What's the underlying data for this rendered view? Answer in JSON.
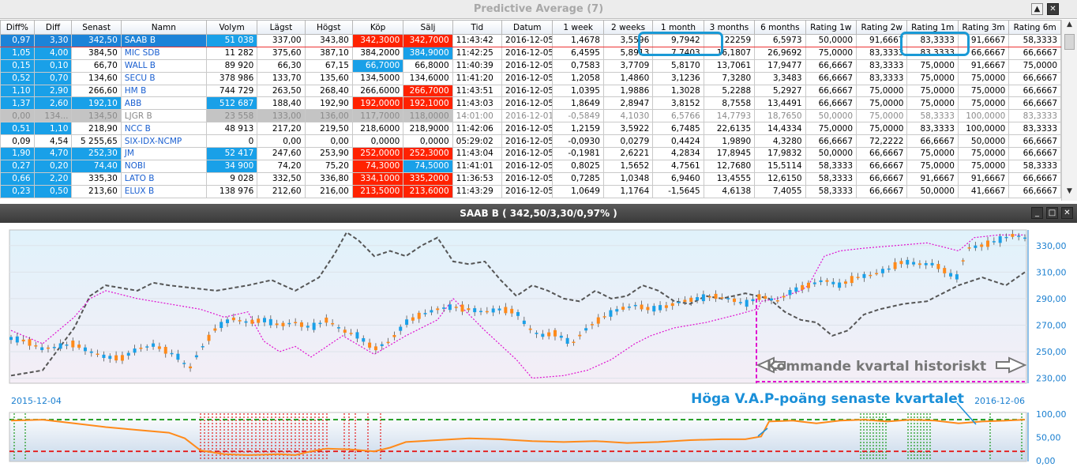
{
  "window": {
    "title": "Predictive Average (7)",
    "buttons": [
      "▲",
      "✕"
    ]
  },
  "grid": {
    "columns": [
      "Diff%",
      "Diff",
      "Senast",
      "Namn",
      "Volym",
      "Lägst",
      "Högst",
      "Köp",
      "Sälj",
      "Tid",
      "Datum",
      "1 week",
      "2 weeks",
      "1 month",
      "3 months",
      "6 months",
      "Rating 1w",
      "Rating 2w",
      "Rating 1m",
      "Rating 3m",
      "Rating 6m"
    ],
    "rows": [
      [
        "0,97",
        "3,30",
        "342,50",
        "SAAB B",
        "51 038",
        "337,00",
        "343,80",
        "342,3000",
        "342,7000",
        "11:43:42",
        "2016-12-05",
        "1,4678",
        "3,5596",
        "9,7942",
        "22259",
        "6,5973",
        "50,0000",
        "91,6667",
        "83,3333",
        "91,6667",
        "58,3333"
      ],
      [
        "1,05",
        "4,00",
        "384,50",
        "MIC SDB",
        "11 282",
        "375,60",
        "387,10",
        "384,2000",
        "384,9000",
        "11:42:25",
        "2016-12-05",
        "6,4595",
        "5,8913",
        "7,7403",
        "16,1807",
        "26,9692",
        "75,0000",
        "83,3333",
        "83,3333",
        "66,6667",
        "66,6667"
      ],
      [
        "0,15",
        "0,10",
        "66,70",
        "WALL B",
        "89 920",
        "66,30",
        "67,15",
        "66,7000",
        "66,8000",
        "11:40:39",
        "2016-12-05",
        "0,7583",
        "3,7709",
        "5,8170",
        "13,7061",
        "17,9477",
        "66,6667",
        "83,3333",
        "75,0000",
        "91,6667",
        "75,0000"
      ],
      [
        "0,52",
        "0,70",
        "134,60",
        "SECU B",
        "378 986",
        "133,70",
        "135,60",
        "134,5000",
        "134,6000",
        "11:41:20",
        "2016-12-05",
        "1,2058",
        "1,4860",
        "3,1236",
        "7,3280",
        "3,3483",
        "66,6667",
        "83,3333",
        "75,0000",
        "75,0000",
        "66,6667"
      ],
      [
        "1,10",
        "2,90",
        "266,60",
        "HM B",
        "744 729",
        "263,50",
        "268,40",
        "266,6000",
        "266,7000",
        "11:43:51",
        "2016-12-05",
        "1,0395",
        "1,9886",
        "1,3028",
        "5,2288",
        "5,2927",
        "66,6667",
        "75,0000",
        "75,0000",
        "75,0000",
        "66,6667"
      ],
      [
        "1,37",
        "2,60",
        "192,10",
        "ABB",
        "512 687",
        "188,40",
        "192,90",
        "192,0000",
        "192,1000",
        "11:43:03",
        "2016-12-05",
        "1,8649",
        "2,8947",
        "3,8152",
        "8,7558",
        "13,4491",
        "66,6667",
        "75,0000",
        "75,0000",
        "75,0000",
        "66,6667"
      ],
      [
        "0,00",
        "134...",
        "134,50",
        "LJGR B",
        "23 558",
        "133,00",
        "136,00",
        "117,7000",
        "118,0000",
        "14:01:00",
        "2016-12-01",
        "-0,5849",
        "4,1030",
        "6,5766",
        "14,7793",
        "18,7650",
        "50,0000",
        "75,0000",
        "58,3333",
        "100,0000",
        "83,3333"
      ],
      [
        "0,51",
        "1,10",
        "218,90",
        "NCC B",
        "48 913",
        "217,20",
        "219,50",
        "218,6000",
        "218,9000",
        "11:42:06",
        "2016-12-05",
        "1,2159",
        "3,5922",
        "6,7485",
        "22,6135",
        "14,4334",
        "75,0000",
        "75,0000",
        "83,3333",
        "100,0000",
        "83,3333"
      ],
      [
        "0,09",
        "4,54",
        "5 255,65",
        "SIX-IDX-NCMP",
        "0",
        "0,00",
        "0,00",
        "0,0000",
        "0,0000",
        "05:29:02",
        "2016-12-05",
        "-0,0930",
        "0,0279",
        "0,4424",
        "1,9890",
        "4,3280",
        "66,6667",
        "72,2222",
        "66,6667",
        "50,0000",
        "66,6667"
      ],
      [
        "1,90",
        "4,70",
        "252,30",
        "JM",
        "52 417",
        "247,60",
        "253,90",
        "252,0000",
        "252,3000",
        "11:43:04",
        "2016-12-05",
        "-0,1981",
        "2,6221",
        "4,2834",
        "17,8945",
        "17,9832",
        "50,0000",
        "66,6667",
        "75,0000",
        "75,0000",
        "66,6667"
      ],
      [
        "0,27",
        "0,20",
        "74,40",
        "NOBI",
        "34 900",
        "74,20",
        "75,20",
        "74,3000",
        "74,5000",
        "11:41:01",
        "2016-12-05",
        "0,8025",
        "1,5652",
        "4,7561",
        "12,7680",
        "15,5114",
        "58,3333",
        "66,6667",
        "75,0000",
        "75,0000",
        "58,3333"
      ],
      [
        "0,66",
        "2,20",
        "335,30",
        "LATO B",
        "9 028",
        "332,50",
        "336,80",
        "334,1000",
        "335,2000",
        "11:36:53",
        "2016-12-05",
        "0,7285",
        "1,0348",
        "6,9460",
        "13,4555",
        "12,6150",
        "58,3333",
        "66,6667",
        "91,6667",
        "91,6667",
        "66,6667"
      ],
      [
        "0,23",
        "0,50",
        "213,60",
        "ELUX B",
        "138 976",
        "212,60",
        "216,00",
        "213,5000",
        "213,6000",
        "11:43:29",
        "2016-12-05",
        "1,0649",
        "1,1764",
        "-1,5645",
        "4,6138",
        "7,4055",
        "58,3333",
        "66,6667",
        "50,0000",
        "41,6667",
        "66,6667"
      ]
    ]
  },
  "chart_window": {
    "title": "SAAB B ( 342,50/3,30/0,97% )",
    "buttons": [
      "_",
      "□",
      "✕"
    ]
  },
  "chart_data": {
    "type": "line",
    "title": "SAAB B ( 342,50/3,30/0,97% )",
    "x_start": "2015-12-04",
    "x_end": "2016-12-06",
    "price_axis": {
      "ticks": [
        "230,00",
        "250,00",
        "270,00",
        "290,00",
        "310,00",
        "330,00"
      ],
      "ylim": [
        228,
        340
      ]
    },
    "oscillator_axis": {
      "ticks": [
        "0,00",
        "50,00",
        "100,00"
      ],
      "ylim": [
        0,
        100
      ]
    },
    "annotations": {
      "forward": "Kommande kvartal historiskt",
      "high_vap": "Höga V.A.P-poäng senaste kvartalet"
    },
    "series": [
      {
        "name": "candles",
        "color": "#1aa0e8"
      },
      {
        "name": "dashed-grey",
        "color": "#555555"
      },
      {
        "name": "dotted-magenta",
        "color": "#e010d0"
      },
      {
        "name": "oscillator",
        "color": "#ff8a1a"
      }
    ],
    "oscillator_levels": {
      "upper": 88,
      "lower": 20
    }
  }
}
